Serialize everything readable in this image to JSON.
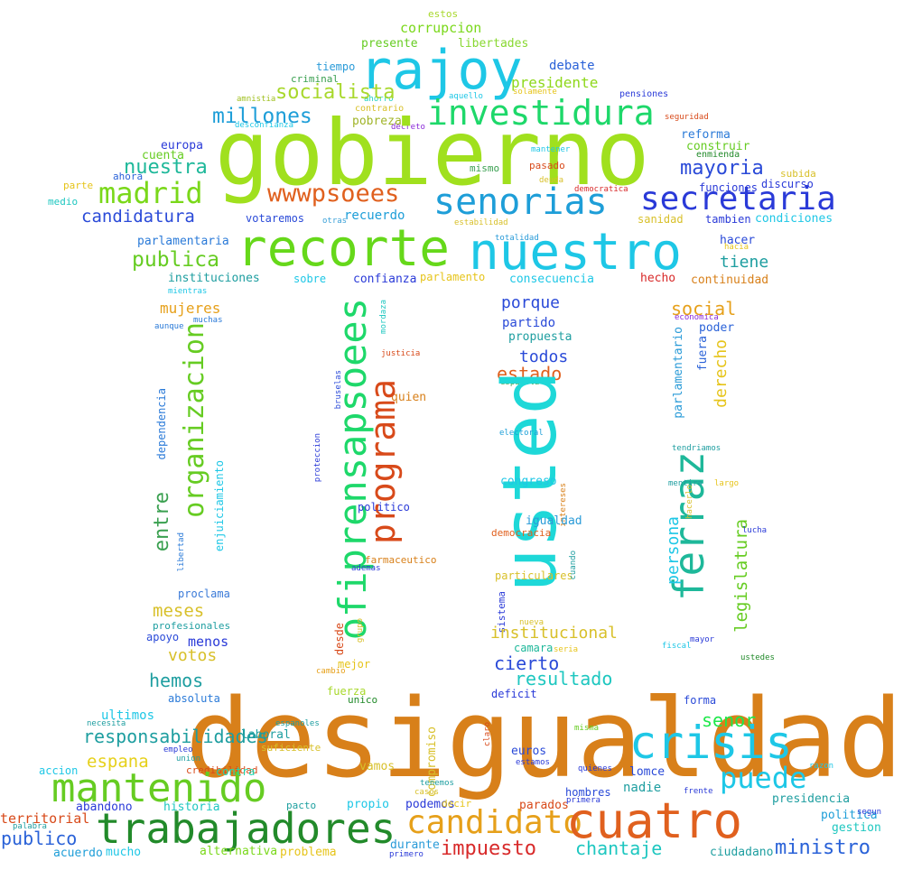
{
  "words": [
    {
      "text": "estos",
      "color": "#a8d82c"
    },
    {
      "text": "corrupcion",
      "color": "#7ad81a"
    },
    {
      "text": "presente",
      "color": "#66cc22"
    },
    {
      "text": "libertades",
      "color": "#88d830"
    },
    {
      "text": "rajoy",
      "color": "#1ec7e6"
    },
    {
      "text": "tiempo",
      "color": "#2a9bd8"
    },
    {
      "text": "debate",
      "color": "#2a62d8"
    },
    {
      "text": "criminal",
      "color": "#3aa050"
    },
    {
      "text": "presidente",
      "color": "#8ed81a"
    },
    {
      "text": "amnistia",
      "color": "#a0c020"
    },
    {
      "text": "ahorro",
      "color": "#1fd0c0"
    },
    {
      "text": "aquello",
      "color": "#1ec7e6"
    },
    {
      "text": "solamente",
      "color": "#e6c41a"
    },
    {
      "text": "pensiones",
      "color": "#2a3ad8"
    },
    {
      "text": "socialista",
      "color": "#a8d82c"
    },
    {
      "text": "investidura",
      "color": "#1ed86a"
    },
    {
      "text": "contrario",
      "color": "#d8c02a"
    },
    {
      "text": "seguridad",
      "color": "#d84a1a"
    },
    {
      "text": "desconfianza",
      "color": "#1ec7e6"
    },
    {
      "text": "pobreza",
      "color": "#a0b428"
    },
    {
      "text": "decreto",
      "color": "#8a2ad8"
    },
    {
      "text": "millones",
      "color": "#1e9ed8"
    },
    {
      "text": "gobierno",
      "color": "#a0e01e"
    },
    {
      "text": "reforma",
      "color": "#2a7ad8"
    },
    {
      "text": "europa",
      "color": "#2a3ad8"
    },
    {
      "text": "construir",
      "color": "#66cc22"
    },
    {
      "text": "mantener",
      "color": "#1ec7e6"
    },
    {
      "text": "cuenta",
      "color": "#66cc22"
    },
    {
      "text": "enmienda",
      "color": "#228a2a"
    },
    {
      "text": "nuestra",
      "color": "#1eb89a"
    },
    {
      "text": "ahora",
      "color": "#2a62d8"
    },
    {
      "text": "mismo",
      "color": "#3aa050"
    },
    {
      "text": "pasado",
      "color": "#d84a1a"
    },
    {
      "text": "mayoria",
      "color": "#2a4ad8"
    },
    {
      "text": "subida",
      "color": "#d8c02a"
    },
    {
      "text": "parte",
      "color": "#e6c41a"
    },
    {
      "text": "deuda",
      "color": "#d8c02a"
    },
    {
      "text": "democratica",
      "color": "#d82a2a"
    },
    {
      "text": "funciones",
      "color": "#2a3ad8"
    },
    {
      "text": "discurso",
      "color": "#2a3ad8"
    },
    {
      "text": "madrid",
      "color": "#7ad81a"
    },
    {
      "text": "wwwpsoees",
      "color": "#e0601e"
    },
    {
      "text": "senorias",
      "color": "#1e9ed8"
    },
    {
      "text": "secretaria",
      "color": "#2a3ad8"
    },
    {
      "text": "medio",
      "color": "#1ec7c0"
    },
    {
      "text": "candidatura",
      "color": "#2a4ad8"
    },
    {
      "text": "votaremos",
      "color": "#2a4ad8"
    },
    {
      "text": "otras",
      "color": "#3aa0d8"
    },
    {
      "text": "recuerdo",
      "color": "#1e9ed8"
    },
    {
      "text": "estabilidad",
      "color": "#d8c02a"
    },
    {
      "text": "sanidad",
      "color": "#d8c02a"
    },
    {
      "text": "tambien",
      "color": "#2a3ad8"
    },
    {
      "text": "condiciones",
      "color": "#1ec7e6"
    },
    {
      "text": "parlamentaria",
      "color": "#2a7ad8"
    },
    {
      "text": "recorte",
      "color": "#66d81a"
    },
    {
      "text": "nuestro",
      "color": "#1ec7e6"
    },
    {
      "text": "totalidad",
      "color": "#2a9bd8"
    },
    {
      "text": "hacer",
      "color": "#2a4ad8"
    },
    {
      "text": "hacia",
      "color": "#e6c41a"
    },
    {
      "text": "publica",
      "color": "#66cc22"
    },
    {
      "text": "tiene",
      "color": "#1e9ea0"
    },
    {
      "text": "instituciones",
      "color": "#1e9ea0"
    },
    {
      "text": "sobre",
      "color": "#1ec7e6"
    },
    {
      "text": "confianza",
      "color": "#2a3ad8"
    },
    {
      "text": "parlamento",
      "color": "#e6c41a"
    },
    {
      "text": "consecuencia",
      "color": "#1ec7e6"
    },
    {
      "text": "hecho",
      "color": "#d82a2a"
    },
    {
      "text": "continuidad",
      "color": "#d8801a"
    },
    {
      "text": "mientras",
      "color": "#1ec7e6"
    },
    {
      "text": "mujeres",
      "color": "#e6a01a"
    },
    {
      "text": "porque",
      "color": "#2a4ad8"
    },
    {
      "text": "social",
      "color": "#e6a01a"
    },
    {
      "text": "aunque",
      "color": "#2a7ad8"
    },
    {
      "text": "muchas",
      "color": "#2a7ad8"
    },
    {
      "text": "mordaza",
      "color": "#1ec7c0"
    },
    {
      "text": "partido",
      "color": "#2a4ad8"
    },
    {
      "text": "economica",
      "color": "#8a2ad8"
    },
    {
      "text": "poder",
      "color": "#2a62d8"
    },
    {
      "text": "organizacion",
      "color": "#66cc22"
    },
    {
      "text": "ofiprensapsoees",
      "color": "#1ed86a"
    },
    {
      "text": "propuesta",
      "color": "#1e9ea0"
    },
    {
      "text": "parlamentario",
      "color": "#2a9bd8"
    },
    {
      "text": "fuera",
      "color": "#2a62d8"
    },
    {
      "text": "derecho",
      "color": "#e6c41a"
    },
    {
      "text": "justicia",
      "color": "#d84a1a"
    },
    {
      "text": "todos",
      "color": "#2a4ad8"
    },
    {
      "text": "estado",
      "color": "#e0601e"
    },
    {
      "text": "bruselas",
      "color": "#2a4ad8"
    },
    {
      "text": "espanola",
      "color": "#3aa050"
    },
    {
      "text": "dependencia",
      "color": "#2a7ad8"
    },
    {
      "text": "quien",
      "color": "#d8801a"
    },
    {
      "text": "usted",
      "color": "#1ed8d8"
    },
    {
      "text": "programa",
      "color": "#d84a1a"
    },
    {
      "text": "ferraz",
      "color": "#1eb89a"
    },
    {
      "text": "electoral",
      "color": "#1ea0d8"
    },
    {
      "text": "tendriamos",
      "color": "#1e9ea0"
    },
    {
      "text": "proteccion",
      "color": "#2a3ad8"
    },
    {
      "text": "enjuiciamiento",
      "color": "#1ec7e6"
    },
    {
      "text": "congreso",
      "color": "#1ec7e6"
    },
    {
      "text": "mentira",
      "color": "#1e9ea0"
    },
    {
      "text": "largo",
      "color": "#e6c41a"
    },
    {
      "text": "hacerlo",
      "color": "#d8c02a"
    },
    {
      "text": "intereses",
      "color": "#d8801a"
    },
    {
      "text": "entre",
      "color": "#3aa050"
    },
    {
      "text": "politico",
      "color": "#2a3ad8"
    },
    {
      "text": "igualdad",
      "color": "#2a9bd8"
    },
    {
      "text": "persona",
      "color": "#1ec7e6"
    },
    {
      "text": "legislatura",
      "color": "#66cc22"
    },
    {
      "text": "democracia",
      "color": "#e0601e"
    },
    {
      "text": "lucha",
      "color": "#2a3ad8"
    },
    {
      "text": "libertad",
      "color": "#2a7ad8"
    },
    {
      "text": "farmaceutico",
      "color": "#d8801a"
    },
    {
      "text": "ademas",
      "color": "#2a3ad8"
    },
    {
      "text": "particulares",
      "color": "#d8c02a"
    },
    {
      "text": "cuando",
      "color": "#1e9ea0"
    },
    {
      "text": "proclama",
      "color": "#3a7ad8"
    },
    {
      "text": "meses",
      "color": "#d8c02a"
    },
    {
      "text": "sistema",
      "color": "#2a3ad8"
    },
    {
      "text": "grupo",
      "color": "#d8c02a"
    },
    {
      "text": "nueva",
      "color": "#d8c02a"
    },
    {
      "text": "profesionales",
      "color": "#1e9ea0"
    },
    {
      "text": "institucional",
      "color": "#d8c02a"
    },
    {
      "text": "camara",
      "color": "#1eb89a"
    },
    {
      "text": "seria",
      "color": "#e6c41a"
    },
    {
      "text": "fiscal",
      "color": "#1ec7e6"
    },
    {
      "text": "mayor",
      "color": "#2a3ad8"
    },
    {
      "text": "votos",
      "color": "#d8c02a"
    },
    {
      "text": "apoyo",
      "color": "#2a4ad8"
    },
    {
      "text": "menos",
      "color": "#2a3ad8"
    },
    {
      "text": "desde",
      "color": "#d84a1a"
    },
    {
      "text": "cierto",
      "color": "#2a4ad8"
    },
    {
      "text": "ustedes",
      "color": "#228a2a"
    },
    {
      "text": "mejor",
      "color": "#e6c41a"
    },
    {
      "text": "hemos",
      "color": "#1e9ea0"
    },
    {
      "text": "cambio",
      "color": "#e6a01a"
    },
    {
      "text": "resultado",
      "color": "#1ec7c0"
    },
    {
      "text": "fuerza",
      "color": "#a8d82c"
    },
    {
      "text": "unico",
      "color": "#228a2a"
    },
    {
      "text": "deficit",
      "color": "#2a3ad8"
    },
    {
      "text": "absoluta",
      "color": "#2a7ad8"
    },
    {
      "text": "forma",
      "color": "#2a4ad8"
    },
    {
      "text": "ultimos",
      "color": "#1ec7e6"
    },
    {
      "text": "desigualdad",
      "color": "#d8801a"
    },
    {
      "text": "senor",
      "color": "#1ee84a"
    },
    {
      "text": "necesita",
      "color": "#1e9ea0"
    },
    {
      "text": "responsabilidades",
      "color": "#1e9ea0"
    },
    {
      "text": "espanoles",
      "color": "#1e9ea0"
    },
    {
      "text": "claro",
      "color": "#d84a1a"
    },
    {
      "text": "misma",
      "color": "#66cc22"
    },
    {
      "text": "crisis",
      "color": "#1ec7e6"
    },
    {
      "text": "espana",
      "color": "#e6d01a"
    },
    {
      "text": "laboral",
      "color": "#1e9ea0"
    },
    {
      "text": "empleo",
      "color": "#2a3ad8"
    },
    {
      "text": "suficiente",
      "color": "#d8c02a"
    },
    {
      "text": "union",
      "color": "#1e9ea0"
    },
    {
      "text": "compromiso",
      "color": "#d8c02a"
    },
    {
      "text": "euros",
      "color": "#2a4ad8"
    },
    {
      "text": "puede",
      "color": "#1ec7e6"
    },
    {
      "text": "accion",
      "color": "#1ec7e6"
    },
    {
      "text": "credibilidad",
      "color": "#d84a1a"
    },
    {
      "text": "estamos",
      "color": "#2a3ad8"
    },
    {
      "text": "quienes",
      "color": "#2a3ad8"
    },
    {
      "text": "razon",
      "color": "#1ec7e6"
    },
    {
      "text": "mantenido",
      "color": "#66cc22"
    },
    {
      "text": "contra",
      "color": "#1ed8b0"
    },
    {
      "text": "vamos",
      "color": "#d8c02a"
    },
    {
      "text": "lomce",
      "color": "#2a4ad8"
    },
    {
      "text": "tenemos",
      "color": "#1e9ea0"
    },
    {
      "text": "casos",
      "color": "#d8c02a"
    },
    {
      "text": "hombres",
      "color": "#2a4ad8"
    },
    {
      "text": "frente",
      "color": "#2a3ad8"
    },
    {
      "text": "abandono",
      "color": "#2a3ad8"
    },
    {
      "text": "historia",
      "color": "#1ec7c0"
    },
    {
      "text": "pacto",
      "color": "#1ea0a0"
    },
    {
      "text": "propio",
      "color": "#1ec7e6"
    },
    {
      "text": "podemos",
      "color": "#2a3ad8"
    },
    {
      "text": "decir",
      "color": "#e6c41a"
    },
    {
      "text": "parados",
      "color": "#d84a1a"
    },
    {
      "text": "nadie",
      "color": "#1e9ea0"
    },
    {
      "text": "primera",
      "color": "#2a3ad8"
    },
    {
      "text": "presidencia",
      "color": "#1e9ea0"
    },
    {
      "text": "palabra",
      "color": "#1e9ea0"
    },
    {
      "text": "territorial",
      "color": "#d84a1a"
    },
    {
      "text": "trabajadores",
      "color": "#228a2a"
    },
    {
      "text": "candidato",
      "color": "#e6a01a"
    },
    {
      "text": "cuatro",
      "color": "#e0601e"
    },
    {
      "text": "politica",
      "color": "#1e9ed8"
    },
    {
      "text": "segun",
      "color": "#2a3ad8"
    },
    {
      "text": "gestion",
      "color": "#1ec7c0"
    },
    {
      "text": "publico",
      "color": "#2a62d8"
    },
    {
      "text": "impuesto",
      "color": "#d82a2a"
    },
    {
      "text": "durante",
      "color": "#2a9bd8"
    },
    {
      "text": "primero",
      "color": "#2a3ad8"
    },
    {
      "text": "chantaje",
      "color": "#1ec7c0"
    },
    {
      "text": "ciudadano",
      "color": "#1e9ea0"
    },
    {
      "text": "ministro",
      "color": "#2a62d8"
    },
    {
      "text": "acuerdo",
      "color": "#1e9ed8"
    },
    {
      "text": "mucho",
      "color": "#1ec7e6"
    },
    {
      "text": "alternativa",
      "color": "#7ad81a"
    },
    {
      "text": "problema",
      "color": "#e6c41a"
    },
    {
      "text": "responsabilidad",
      "color": "#1e9ea0"
    }
  ]
}
